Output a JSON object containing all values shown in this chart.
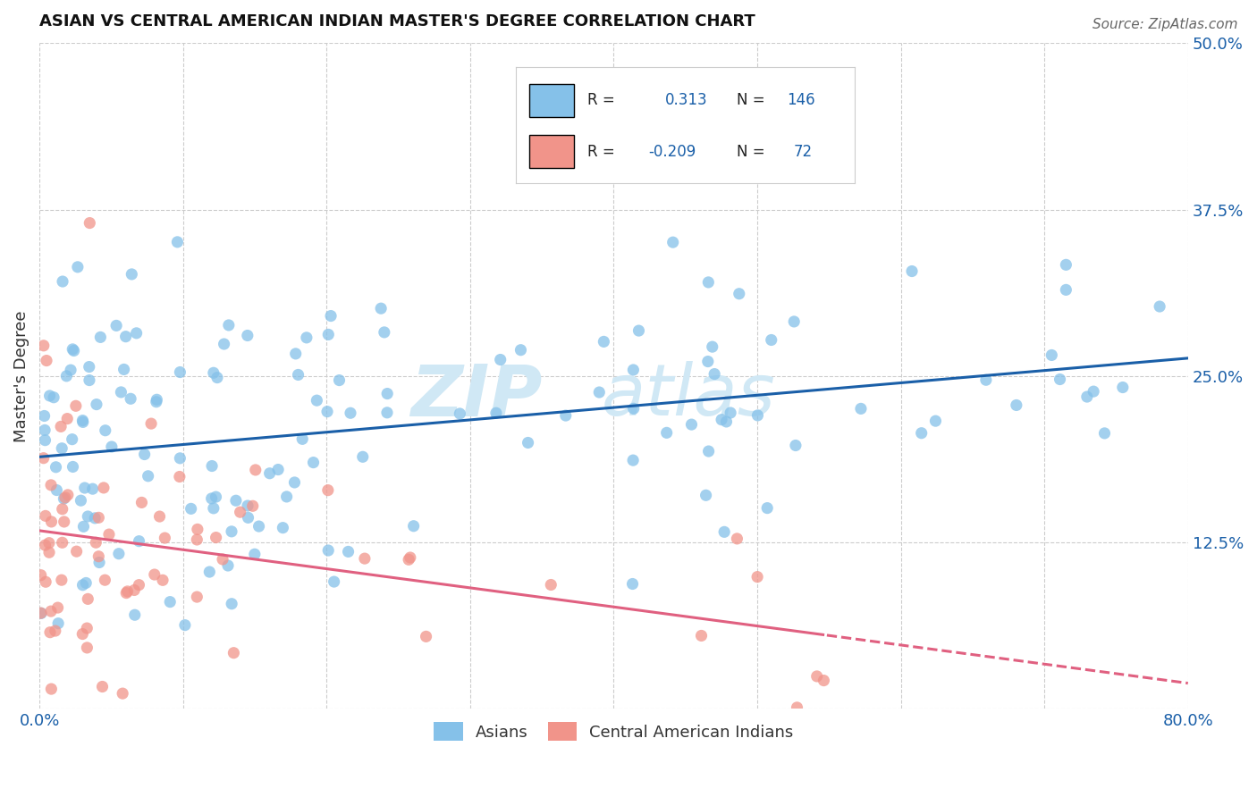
{
  "title": "ASIAN VS CENTRAL AMERICAN INDIAN MASTER'S DEGREE CORRELATION CHART",
  "source": "Source: ZipAtlas.com",
  "ylabel": "Master's Degree",
  "xlim": [
    0.0,
    0.8
  ],
  "ylim": [
    0.0,
    0.5
  ],
  "ytick_positions": [
    0.0,
    0.125,
    0.25,
    0.375,
    0.5
  ],
  "yticklabels": [
    "",
    "12.5%",
    "25.0%",
    "37.5%",
    "50.0%"
  ],
  "xtick_positions": [
    0.0,
    0.1,
    0.2,
    0.3,
    0.4,
    0.5,
    0.6,
    0.7,
    0.8
  ],
  "xticklabels": [
    "0.0%",
    "",
    "",
    "",
    "",
    "",
    "",
    "",
    "80.0%"
  ],
  "blue_R": "0.313",
  "blue_N": "146",
  "pink_R": "-0.209",
  "pink_N": "72",
  "blue_scatter_color": "#85c1e9",
  "pink_scatter_color": "#f1948a",
  "blue_line_color": "#1a5fa8",
  "pink_line_color": "#e06080",
  "label_color": "#1a5fa8",
  "text_color": "#333333",
  "watermark_color": "#d0e8f5",
  "background_color": "#ffffff",
  "grid_color": "#cccccc",
  "legend_box_color": "#e8e8e8",
  "blue_intercept": 0.2,
  "blue_slope": 0.065,
  "pink_intercept": 0.13,
  "pink_slope": -0.06
}
